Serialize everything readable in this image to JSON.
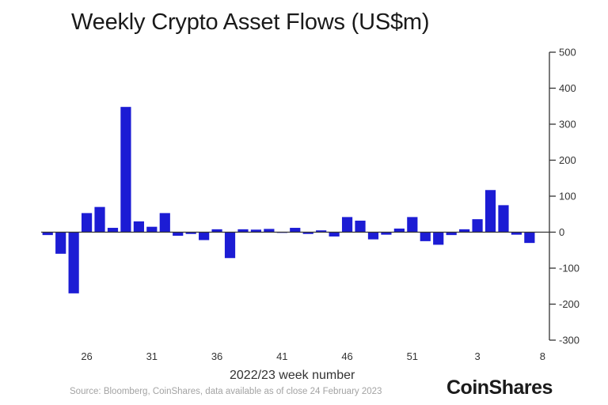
{
  "chart_data": {
    "type": "bar",
    "title": "Weekly Crypto Asset Flows (US$m)",
    "xlabel": "2022/23 week number",
    "ylabel": "",
    "ylim": [
      -300,
      500
    ],
    "y_ticks": [
      500,
      400,
      300,
      200,
      100,
      0,
      -100,
      -200,
      -300
    ],
    "x_ticks": [
      {
        "label": "26",
        "bar_index": 3
      },
      {
        "label": "31",
        "bar_index": 8
      },
      {
        "label": "36",
        "bar_index": 13
      },
      {
        "label": "41",
        "bar_index": 18
      },
      {
        "label": "46",
        "bar_index": 23
      },
      {
        "label": "51",
        "bar_index": 28
      },
      {
        "label": "3",
        "bar_index": 33
      },
      {
        "label": "8",
        "bar_index": 38
      }
    ],
    "color": "#1c1cd4",
    "values": [
      -8,
      -60,
      -170,
      53,
      70,
      12,
      348,
      30,
      15,
      53,
      -10,
      -5,
      -22,
      8,
      -72,
      8,
      7,
      9,
      -2,
      12,
      -5,
      5,
      -12,
      42,
      32,
      -20,
      -7,
      10,
      42,
      -25,
      -35,
      -8,
      8,
      36,
      117,
      75,
      -7,
      -30
    ],
    "grid": false,
    "legend": "none"
  },
  "source": "Source: Bloomberg, CoinShares, data available as of close 24 February 2023",
  "brand": "CoinShares"
}
